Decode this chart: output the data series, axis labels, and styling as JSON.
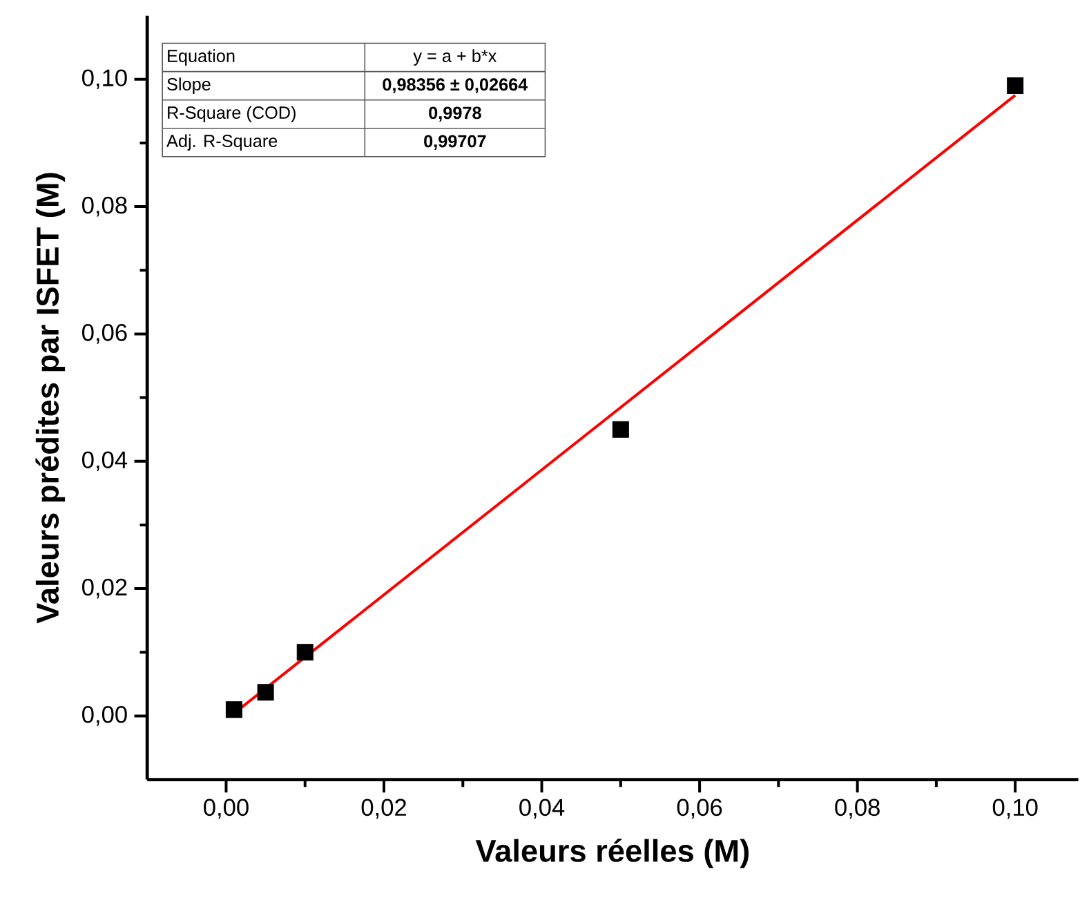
{
  "chart_data": {
    "type": "scatter",
    "xlabel": "Valeurs réelles (M)",
    "ylabel": "Valeurs prédites par ISFET (M)",
    "annotations": [
      "Equation",
      "y = a + b*x",
      "Slope",
      "0,98356 ± 0,02664",
      "R-Square (COD)",
      "0,9978",
      "Adj. R-Square",
      "0,99707"
    ],
    "series": [
      {
        "marker": "square",
        "color": "#000000",
        "x": [
          0.001,
          0.005,
          0.01,
          0.05,
          0.1
        ],
        "values": [
          0.001,
          0.0037,
          0.01,
          0.045,
          0.099
        ]
      },
      {
        "type": "line",
        "color": "#ff0000",
        "x": [
          0.001,
          0.1
        ],
        "values": [
          0.0004,
          0.0975
        ]
      }
    ],
    "xlim": [
      -0.01,
      0.108
    ],
    "ylim": [
      -0.01,
      0.11
    ],
    "xticks": [
      {
        "value": 0,
        "label": "0,00"
      },
      {
        "value": 0.02,
        "label": "0,02"
      },
      {
        "value": 0.04,
        "label": "0,04"
      },
      {
        "value": 0.06,
        "label": "0,06"
      },
      {
        "value": 0.08,
        "label": "0,08"
      },
      {
        "value": 0.1,
        "label": "0,10"
      }
    ],
    "yticks": [
      {
        "value": 0,
        "label": "0,00"
      },
      {
        "value": 0.02,
        "label": "0,02"
      },
      {
        "value": 0.04,
        "label": "0,04"
      },
      {
        "value": 0.06,
        "label": "0,06"
      },
      {
        "value": 0.08,
        "label": "0,08"
      },
      {
        "value": 0.1,
        "label": "0,10"
      }
    ]
  }
}
